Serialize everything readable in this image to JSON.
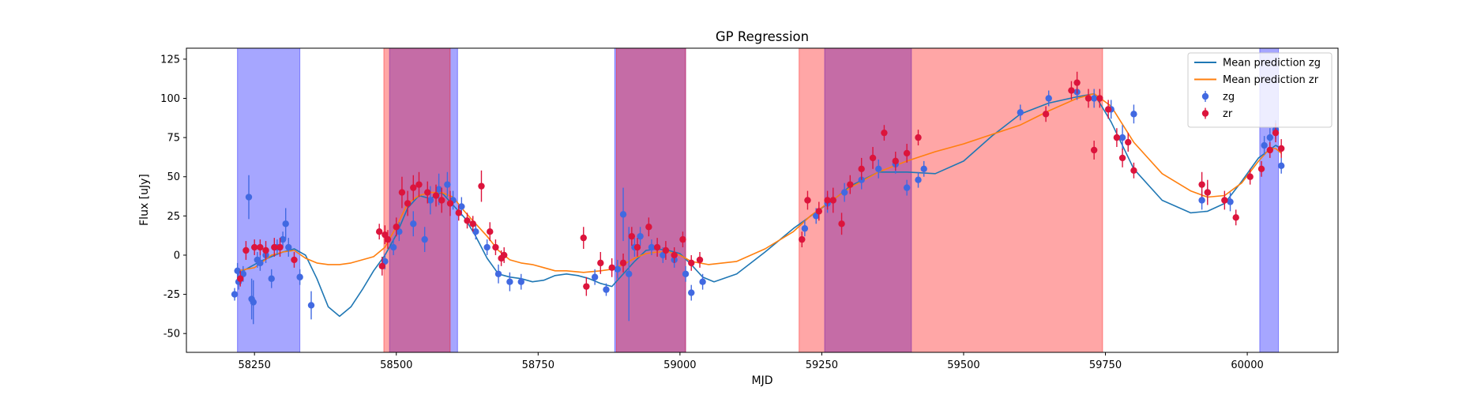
{
  "chart_data": {
    "type": "scatter",
    "title": "GP Regression",
    "xlabel": "MJD",
    "ylabel": "Flux [uJy]",
    "xlim": [
      58130,
      60160
    ],
    "ylim": [
      -62,
      132
    ],
    "xticks": [
      58250,
      58500,
      58750,
      59000,
      59250,
      59500,
      59750,
      60000
    ],
    "yticks": [
      -50,
      -25,
      0,
      25,
      50,
      75,
      100,
      125
    ],
    "grid": false,
    "legend_position": "top-right",
    "legend": [
      {
        "label": "Mean prediction zg",
        "kind": "line",
        "color": "#1f77b4"
      },
      {
        "label": "Mean prediction zr",
        "kind": "line",
        "color": "#ff7f0e"
      },
      {
        "label": "zg",
        "kind": "errorbar",
        "color": "#4169e1"
      },
      {
        "label": "zr",
        "kind": "errorbar",
        "color": "#dc143c"
      }
    ],
    "shaded_regions": [
      {
        "band": "zg",
        "color": "#0000ff",
        "x0": 58220,
        "x1": 58330
      },
      {
        "band": "zg",
        "color": "#0000ff",
        "x0": 58488,
        "x1": 58608
      },
      {
        "band": "zg",
        "color": "#0000ff",
        "x0": 58885,
        "x1": 59010
      },
      {
        "band": "zg",
        "color": "#0000ff",
        "x0": 59255,
        "x1": 59408
      },
      {
        "band": "zg",
        "color": "#0000ff",
        "x0": 60022,
        "x1": 60055
      },
      {
        "band": "zr",
        "color": "#ff0000",
        "x0": 58478,
        "x1": 58595
      },
      {
        "band": "zr",
        "color": "#ff0000",
        "x0": 58888,
        "x1": 59010
      },
      {
        "band": "zr",
        "color": "#ff0000",
        "x0": 59210,
        "x1": 59745
      }
    ],
    "series": [
      {
        "name": "Mean prediction zg",
        "type": "line",
        "color": "#1f77b4",
        "x": [
          58220,
          58240,
          58260,
          58280,
          58300,
          58320,
          58340,
          58360,
          58380,
          58400,
          58420,
          58440,
          58460,
          58480,
          58500,
          58520,
          58540,
          58560,
          58580,
          58600,
          58620,
          58640,
          58660,
          58680,
          58700,
          58720,
          58740,
          58760,
          58780,
          58800,
          58820,
          58840,
          58860,
          58880,
          58900,
          58920,
          58940,
          58960,
          58980,
          59000,
          59020,
          59040,
          59060,
          59100,
          59150,
          59200,
          59250,
          59280,
          59300,
          59350,
          59400,
          59450,
          59500,
          59550,
          59600,
          59650,
          59700,
          59730,
          59760,
          59800,
          59850,
          59900,
          59930,
          59960,
          59990,
          60020,
          60050,
          60060
        ],
        "y": [
          -12,
          -8,
          -4,
          -1,
          2,
          4,
          0,
          -15,
          -33,
          -39,
          -33,
          -22,
          -10,
          0,
          13,
          30,
          38,
          36,
          40,
          32,
          24,
          12,
          -2,
          -12,
          -14,
          -15,
          -17,
          -16,
          -13,
          -12,
          -13,
          -15,
          -18,
          -20,
          -12,
          -4,
          3,
          4,
          3,
          1,
          -6,
          -14,
          -17,
          -12,
          2,
          17,
          30,
          38,
          44,
          53,
          53,
          52,
          60,
          76,
          90,
          97,
          101,
          103,
          85,
          55,
          35,
          27,
          28,
          33,
          47,
          62,
          70,
          68
        ]
      },
      {
        "name": "Mean prediction zr",
        "type": "line",
        "color": "#ff7f0e",
        "x": [
          58220,
          58250,
          58280,
          58300,
          58320,
          58340,
          58360,
          58380,
          58400,
          58420,
          58440,
          58460,
          58480,
          58500,
          58520,
          58540,
          58560,
          58580,
          58600,
          58620,
          58640,
          58660,
          58680,
          58700,
          58720,
          58740,
          58760,
          58780,
          58800,
          58830,
          58860,
          58880,
          58900,
          58920,
          58940,
          58960,
          58980,
          59000,
          59020,
          59050,
          59100,
          59150,
          59200,
          59230,
          59260,
          59280,
          59300,
          59350,
          59400,
          59450,
          59500,
          59550,
          59600,
          59650,
          59700,
          59730,
          59760,
          59800,
          59850,
          59900,
          59930,
          59960,
          59990,
          60020,
          60040,
          60050,
          60060
        ],
        "y": [
          -10,
          -8,
          0,
          2,
          3,
          -2,
          -5,
          -6,
          -6,
          -5,
          -3,
          -1,
          5,
          18,
          33,
          38,
          40,
          40,
          37,
          28,
          20,
          12,
          3,
          -3,
          -5,
          -6,
          -8,
          -10,
          -10,
          -11,
          -10,
          -9,
          -6,
          -2,
          1,
          2,
          2,
          0,
          -4,
          -6,
          -4,
          4,
          15,
          25,
          33,
          38,
          43,
          53,
          60,
          66,
          71,
          77,
          83,
          92,
          100,
          103,
          95,
          72,
          52,
          41,
          37,
          38,
          46,
          60,
          68,
          68,
          65
        ]
      },
      {
        "name": "zg",
        "type": "errorbar",
        "color": "#4169e1",
        "x": [
          58215,
          58220,
          58222,
          58230,
          58240,
          58245,
          58248,
          58255,
          58260,
          58270,
          58280,
          58290,
          58300,
          58305,
          58310,
          58330,
          58350,
          58480,
          58495,
          58505,
          58530,
          58550,
          58560,
          58575,
          58590,
          58600,
          58615,
          58640,
          58660,
          58680,
          58700,
          58720,
          58850,
          58870,
          58890,
          58900,
          58910,
          58920,
          58930,
          58950,
          58970,
          58990,
          59010,
          59020,
          59040,
          59220,
          59240,
          59260,
          59290,
          59320,
          59350,
          59380,
          59400,
          59420,
          59430,
          59600,
          59650,
          59700,
          59730,
          59760,
          59780,
          59800,
          59920,
          59930,
          59970,
          60030,
          60040,
          60050,
          60060
        ],
        "y": [
          -25,
          -10,
          -17,
          -12,
          37,
          -28,
          -30,
          -3,
          -5,
          0,
          -15,
          5,
          10,
          20,
          5,
          -14,
          -32,
          -4,
          5,
          15,
          20,
          10,
          35,
          42,
          45,
          35,
          31,
          15,
          5,
          -12,
          -17,
          -17,
          -14,
          -22,
          -9,
          26,
          -12,
          5,
          12,
          5,
          0,
          -3,
          -12,
          -24,
          -17,
          17,
          25,
          33,
          40,
          48,
          55,
          58,
          43,
          48,
          55,
          91,
          100,
          104,
          100,
          93,
          75,
          90,
          35,
          40,
          34,
          70,
          75,
          80,
          57
        ],
        "err": [
          4,
          5,
          5,
          5,
          14,
          13,
          14,
          5,
          5,
          5,
          6,
          5,
          5,
          10,
          6,
          5,
          9,
          5,
          5,
          6,
          8,
          8,
          9,
          10,
          8,
          6,
          6,
          5,
          5,
          6,
          6,
          5,
          5,
          4,
          6,
          17,
          30,
          6,
          6,
          5,
          5,
          5,
          5,
          5,
          5,
          5,
          5,
          6,
          6,
          6,
          6,
          6,
          5,
          5,
          5,
          5,
          5,
          5,
          6,
          6,
          8,
          6,
          6,
          6,
          6,
          6,
          6,
          6,
          5
        ]
      },
      {
        "name": "zr",
        "type": "errorbar",
        "color": "#dc143c",
        "x": [
          58225,
          58235,
          58250,
          58260,
          58270,
          58285,
          58295,
          58320,
          58470,
          58475,
          58480,
          58485,
          58500,
          58510,
          58520,
          58530,
          58540,
          58555,
          58570,
          58580,
          58595,
          58610,
          58625,
          58635,
          58650,
          58665,
          58675,
          58685,
          58690,
          58830,
          58835,
          58860,
          58880,
          58900,
          58915,
          58925,
          58945,
          58960,
          58975,
          58990,
          59005,
          59020,
          59035,
          59215,
          59225,
          59245,
          59260,
          59270,
          59285,
          59300,
          59320,
          59340,
          59360,
          59380,
          59400,
          59420,
          59645,
          59690,
          59700,
          59720,
          59730,
          59740,
          59755,
          59770,
          59780,
          59790,
          59800,
          59920,
          59930,
          59960,
          59980,
          60005,
          60025,
          60040,
          60050,
          60060
        ],
        "y": [
          -15,
          3,
          5,
          5,
          3,
          5,
          5,
          -3,
          15,
          -7,
          13,
          10,
          18,
          40,
          33,
          43,
          45,
          40,
          38,
          35,
          33,
          27,
          22,
          20,
          44,
          15,
          5,
          -2,
          0,
          11,
          -20,
          -5,
          -8,
          -5,
          12,
          5,
          18,
          5,
          3,
          0,
          10,
          -5,
          -3,
          10,
          35,
          28,
          35,
          35,
          20,
          45,
          55,
          62,
          78,
          60,
          65,
          75,
          90,
          105,
          110,
          100,
          67,
          100,
          93,
          75,
          62,
          72,
          54,
          45,
          40,
          35,
          24,
          50,
          55,
          67,
          78,
          68
        ],
        "err": [
          5,
          6,
          5,
          5,
          6,
          6,
          6,
          5,
          5,
          6,
          6,
          6,
          6,
          10,
          8,
          8,
          8,
          7,
          7,
          8,
          8,
          5,
          5,
          5,
          10,
          6,
          5,
          5,
          5,
          7,
          6,
          7,
          6,
          6,
          6,
          6,
          6,
          6,
          6,
          5,
          5,
          5,
          5,
          5,
          6,
          6,
          6,
          8,
          7,
          6,
          7,
          7,
          5,
          6,
          6,
          5,
          5,
          6,
          7,
          6,
          6,
          6,
          6,
          6,
          6,
          6,
          5,
          8,
          8,
          6,
          5,
          5,
          5,
          5,
          6,
          6
        ]
      }
    ]
  }
}
